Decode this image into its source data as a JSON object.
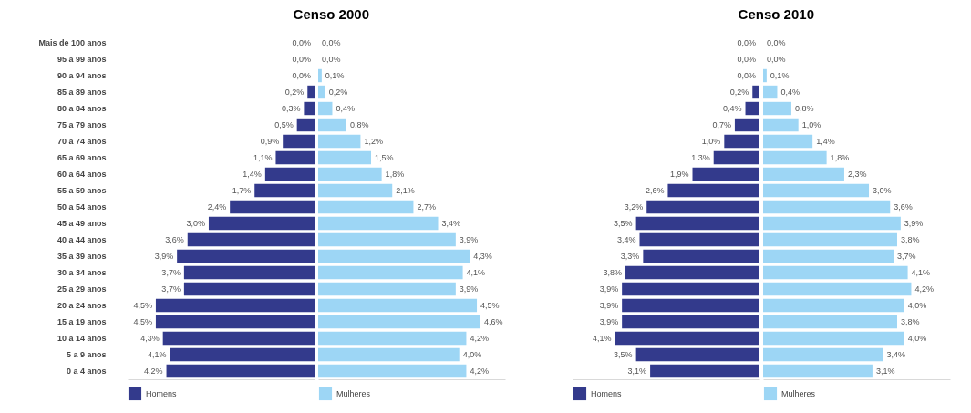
{
  "chart_data": [
    {
      "type": "bar",
      "orientation": "horizontal",
      "title": "Censo 2000",
      "categories": [
        "Mais de 100 anos",
        "95 a 99 anos",
        "90 a 94 anos",
        "85 a 89 anos",
        "80 a 84 anos",
        "75 a 79 anos",
        "70 a 74 anos",
        "65 a 69 anos",
        "60 a 64 anos",
        "55 a 59 anos",
        "50 a 54 anos",
        "45 a 49 anos",
        "40 a 44 anos",
        "35 a 39 anos",
        "30 a 34 anos",
        "25 a 29 anos",
        "20 a 24 anos",
        "15 a 19 anos",
        "10 a 14 anos",
        "5 a 9 anos",
        "0 a 4 anos"
      ],
      "xlim": [
        5.3,
        0
      ],
      "legend": "bottom",
      "tick_labels": "y",
      "series": [
        {
          "name": "Homens",
          "color": "#333a8c",
          "values": [
            0.0,
            0.0,
            0.0,
            0.2,
            0.3,
            0.5,
            0.9,
            1.1,
            1.4,
            1.7,
            2.4,
            3.0,
            3.6,
            3.9,
            3.7,
            3.7,
            4.5,
            4.5,
            4.3,
            4.1,
            4.2
          ],
          "value_labels": [
            "0,0%",
            "0,0%",
            "0,0%",
            "0,2%",
            "0,3%",
            "0,5%",
            "0,9%",
            "1,1%",
            "1,4%",
            "1,7%",
            "2,4%",
            "3,0%",
            "3,6%",
            "3,9%",
            "3,7%",
            "3,7%",
            "4,5%",
            "4,5%",
            "4,3%",
            "4,1%",
            "4,2%"
          ]
        }
      ]
    },
    {
      "type": "bar",
      "orientation": "horizontal",
      "categories": [
        null,
        null,
        null,
        null,
        null,
        null,
        null,
        null,
        null,
        null,
        null,
        null,
        null,
        null,
        null,
        null,
        null,
        null,
        null,
        null,
        null
      ],
      "xlim": [
        0,
        5.3
      ],
      "legend": "bottom",
      "series": [
        {
          "name": "Mulheres",
          "color": "#9dd6f5",
          "values": [
            0.0,
            0.0,
            0.1,
            0.2,
            0.4,
            0.8,
            1.2,
            1.5,
            1.8,
            2.1,
            2.7,
            3.4,
            3.9,
            4.3,
            4.1,
            3.9,
            4.5,
            4.6,
            4.2,
            4.0,
            4.2
          ],
          "value_labels": [
            "0,0%",
            "0,0%",
            "0,1%",
            "0,2%",
            "0,4%",
            "0,8%",
            "1,2%",
            "1,5%",
            "1,8%",
            "2,1%",
            "2,7%",
            "3,4%",
            "3,9%",
            "4,3%",
            "4,1%",
            "3,9%",
            "4,5%",
            "4,6%",
            "4,2%",
            "4,0%",
            "4,2%"
          ]
        }
      ]
    },
    {
      "type": "bar",
      "orientation": "horizontal",
      "title": "Censo 2010",
      "categories": [
        null,
        null,
        null,
        null,
        null,
        null,
        null,
        null,
        null,
        null,
        null,
        null,
        null,
        null,
        null,
        null,
        null,
        null,
        null,
        null,
        null
      ],
      "xlim": [
        5.3,
        0
      ],
      "legend": "bottom",
      "series": [
        {
          "name": "Homens",
          "color": "#333a8c",
          "values": [
            0.0,
            0.0,
            0.0,
            0.2,
            0.4,
            0.7,
            1.0,
            1.3,
            1.9,
            2.6,
            3.2,
            3.5,
            3.4,
            3.3,
            3.8,
            3.9,
            3.9,
            3.9,
            4.1,
            3.5,
            3.1
          ],
          "value_labels": [
            "0,0%",
            "0,0%",
            "0,0%",
            "0,2%",
            "0,4%",
            "0,7%",
            "1,0%",
            "1,3%",
            "1,9%",
            "2,6%",
            "3,2%",
            "3,5%",
            "3,4%",
            "3,3%",
            "3,8%",
            "3,9%",
            "3,9%",
            "3,9%",
            "4,1%",
            "3,5%",
            "3,1%"
          ]
        }
      ]
    },
    {
      "type": "bar",
      "orientation": "horizontal",
      "categories": [
        null,
        null,
        null,
        null,
        null,
        null,
        null,
        null,
        null,
        null,
        null,
        null,
        null,
        null,
        null,
        null,
        null,
        null,
        null,
        null,
        null
      ],
      "xlim": [
        0,
        5.3
      ],
      "legend": "bottom",
      "series": [
        {
          "name": "Mulheres",
          "color": "#9dd6f5",
          "values": [
            0.0,
            0.0,
            0.1,
            0.4,
            0.8,
            1.0,
            1.4,
            1.8,
            2.3,
            3.0,
            3.6,
            3.9,
            3.8,
            3.7,
            4.1,
            4.2,
            4.0,
            3.8,
            4.0,
            3.4,
            3.1
          ],
          "value_labels": [
            "0,0%",
            "0,0%",
            "0,1%",
            "0,4%",
            "0,8%",
            "1,0%",
            "1,4%",
            "1,8%",
            "2,3%",
            "3,0%",
            "3,6%",
            "3,9%",
            "3,8%",
            "3,7%",
            "4,1%",
            "4,2%",
            "4,0%",
            "3,8%",
            "4,0%",
            "3,4%",
            "3,1%"
          ]
        }
      ]
    }
  ]
}
